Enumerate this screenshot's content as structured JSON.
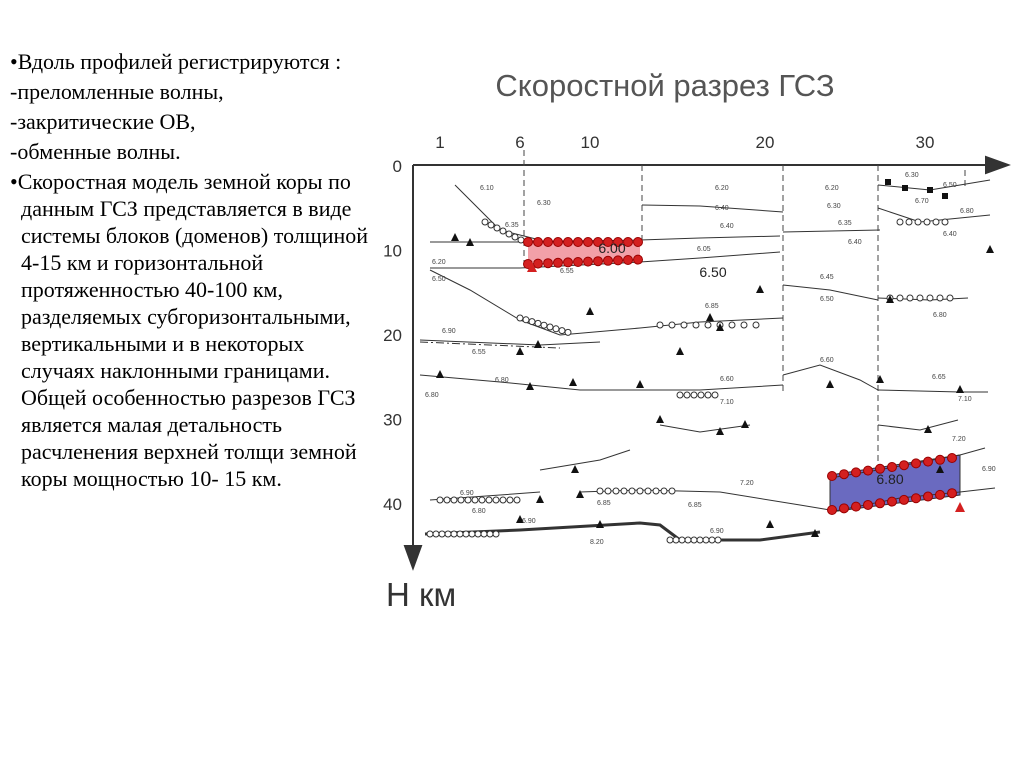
{
  "text_items": [
    "•Вдоль профилей регистрируются :",
    "-преломленные волны,",
    "-закритические  ОВ,",
    "-обменные волны.",
    "•Скоростная модель земной коры по данным ГСЗ представляется в виде системы блоков (доменов) толщиной 4-15 км и горизонтальной протяженностью 40-100 км, разделяемых субгоризонтальными, вертикальными и в некоторых случаях наклонными границами. Общей особенностью разрезов ГСЗ является малая детальность расчленения верхней толщи земной коры мощностью 10- 15 км."
  ],
  "figure": {
    "title": "Скоростной разрез ГСЗ",
    "depth_label": "Н км",
    "distance_ticks": [
      1,
      6,
      10,
      20,
      30
    ],
    "depth_ticks": [
      0,
      10,
      20,
      30,
      40
    ],
    "block_labels": [
      "6.00",
      "6.50",
      "6.80"
    ],
    "small_labels": [
      "6.10",
      "6.30",
      "6.35",
      "6.20",
      "6.40",
      "6.20",
      "6.30",
      "6.35",
      "6.40",
      "6.30",
      "6.50",
      "6.70",
      "6.80",
      "6.40",
      "6.40",
      "6.05",
      "6.55",
      "6.20",
      "6.50",
      "6.45",
      "6.50",
      "6.80",
      "6.85",
      "6.90",
      "6.55",
      "6.60",
      "6.80",
      "6.80",
      "6.60",
      "7.10",
      "6.65",
      "7.10",
      "7.20",
      "6.90",
      "7.20",
      "6.90",
      "6.80",
      "6.85",
      "6.85",
      "6.90",
      "6.90",
      "8.20"
    ]
  }
}
